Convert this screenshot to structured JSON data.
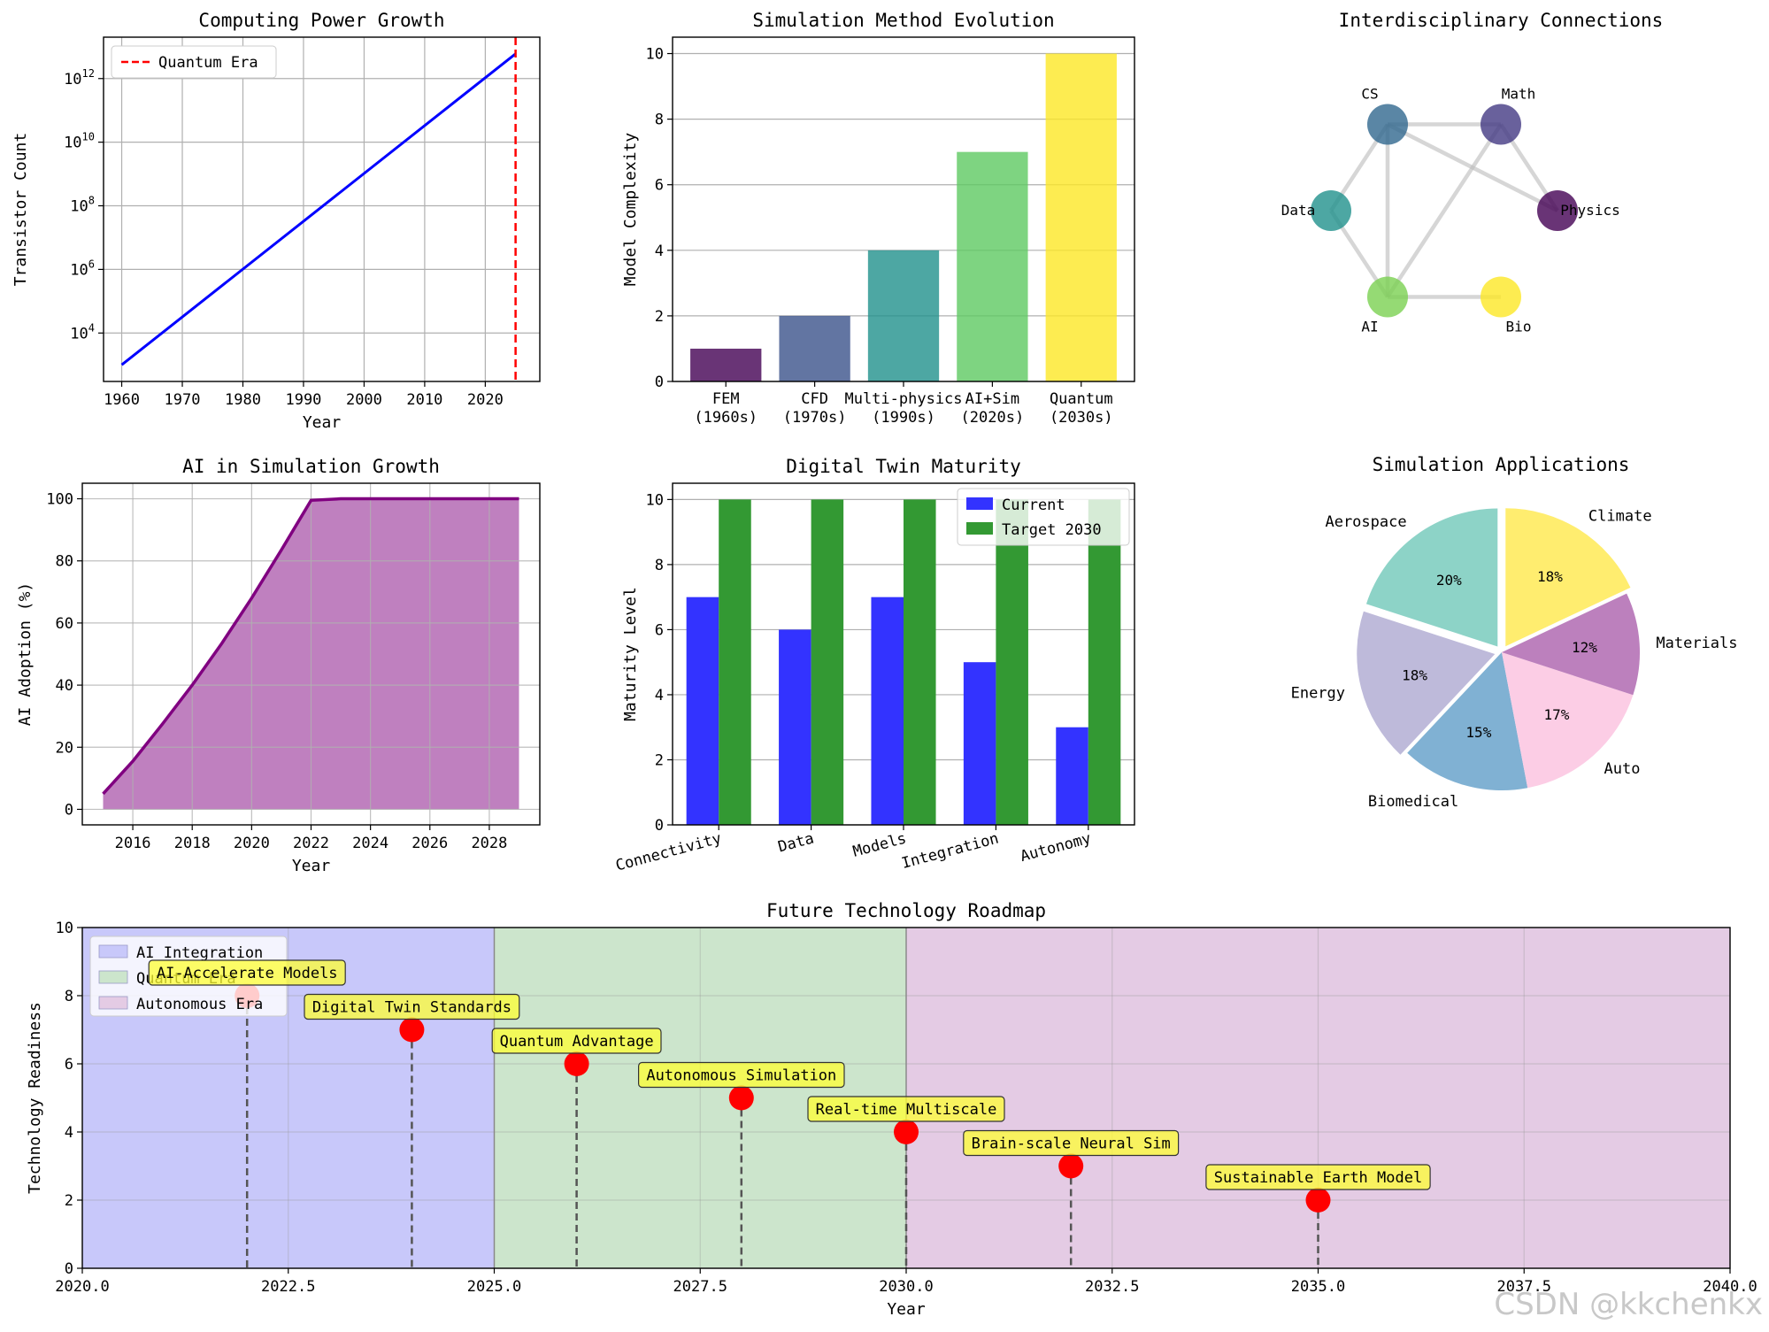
{
  "watermark": "CSDN @kkchenkx",
  "chart_data": [
    {
      "id": "computing",
      "type": "line",
      "title": "Computing Power Growth",
      "xlabel": "Year",
      "ylabel": "Transistor Count",
      "yscale": "log",
      "xlim": [
        1957,
        2029
      ],
      "ylim": [
        300.0,
        20000000000000.0
      ],
      "xticks": [
        "1960",
        "1970",
        "1980",
        "1990",
        "2000",
        "2010",
        "2020"
      ],
      "yticks": [
        {
          "base": "10",
          "exp": "4",
          "value": 10000
        },
        {
          "base": "10",
          "exp": "6",
          "value": 1000000
        },
        {
          "base": "10",
          "exp": "8",
          "value": 100000000
        },
        {
          "base": "10",
          "exp": "10",
          "value": 10000000000
        },
        {
          "base": "10",
          "exp": "12",
          "value": 1000000000000
        }
      ],
      "series": [
        {
          "x": [
            1960,
            2025
          ],
          "y": [
            1000,
            6000000000000.0
          ],
          "color": "#0000ff"
        }
      ],
      "vline": {
        "x": 2025,
        "label": "Quantum Era",
        "color": "#ff0000"
      },
      "legend": "upper-left",
      "grid": true
    },
    {
      "id": "methods",
      "type": "bar",
      "title": "Simulation Method Evolution",
      "ylabel": "Model Complexity",
      "ylim": [
        0,
        10.5
      ],
      "yticks": [
        "0",
        "2",
        "4",
        "6",
        "8",
        "10"
      ],
      "categories": [
        [
          "FEM",
          "(1960s)"
        ],
        [
          "CFD",
          "(1970s)"
        ],
        [
          "Multi-physics",
          "(1990s)"
        ],
        [
          "AI+Sim",
          "(2020s)"
        ],
        [
          "Quantum",
          "(2030s)"
        ]
      ],
      "values": [
        1,
        2,
        4,
        7,
        10
      ],
      "colors": [
        "#440154",
        "#3b528b",
        "#21918c",
        "#5ec962",
        "#fde725"
      ],
      "grid": "y"
    },
    {
      "id": "network",
      "type": "network",
      "title": "Interdisciplinary Connections",
      "nodes": [
        {
          "label": "CS",
          "x": -0.5,
          "y": 0.87,
          "color": "#31688e"
        },
        {
          "label": "Math",
          "x": 0.5,
          "y": 0.87,
          "color": "#443983"
        },
        {
          "label": "Physics",
          "x": 1.0,
          "y": 0.0,
          "color": "#440154"
        },
        {
          "label": "Data",
          "x": -1.0,
          "y": 0.0,
          "color": "#21918c"
        },
        {
          "label": "AI",
          "x": -0.5,
          "y": -0.87,
          "color": "#7ad151"
        },
        {
          "label": "Bio",
          "x": 0.5,
          "y": -0.87,
          "color": "#fde725"
        }
      ],
      "edges": [
        [
          0,
          1
        ],
        [
          1,
          2
        ],
        [
          0,
          3
        ],
        [
          3,
          4
        ],
        [
          0,
          4
        ],
        [
          1,
          4
        ],
        [
          4,
          5
        ],
        [
          0,
          2
        ]
      ]
    },
    {
      "id": "ai",
      "type": "area",
      "title": "AI in Simulation Growth",
      "xlabel": "Year",
      "ylabel": "AI Adoption (%)",
      "xlim": [
        2014.3,
        2029.7
      ],
      "ylim": [
        -5,
        105
      ],
      "xticks": [
        "2016",
        "2018",
        "2020",
        "2022",
        "2024",
        "2026",
        "2028"
      ],
      "yticks": [
        "0",
        "20",
        "40",
        "60",
        "80",
        "100"
      ],
      "x": [
        2015,
        2016,
        2017,
        2018,
        2019,
        2020,
        2021,
        2022,
        2023,
        2024,
        2025,
        2026,
        2027,
        2028,
        2029
      ],
      "y": [
        5,
        15.5,
        27.5,
        40,
        53.5,
        68,
        83.5,
        99.5,
        100,
        100,
        100,
        100,
        100,
        100,
        100
      ],
      "color": "#800080",
      "fill": "#bf80bf",
      "grid": true
    },
    {
      "id": "twin",
      "type": "bar",
      "title": "Digital Twin Maturity",
      "ylabel": "Maturity Level",
      "ylim": [
        0,
        10.5
      ],
      "yticks": [
        "0",
        "2",
        "4",
        "6",
        "8",
        "10"
      ],
      "categories": [
        "Connectivity",
        "Data",
        "Models",
        "Integration",
        "Autonomy"
      ],
      "series": [
        {
          "name": "Current",
          "values": [
            7,
            6,
            7,
            5,
            3
          ],
          "color": "#3333ff"
        },
        {
          "name": "Target 2030",
          "values": [
            10,
            10,
            10,
            10,
            10
          ],
          "color": "#339933"
        }
      ],
      "legend": "upper-right",
      "grid": "y"
    },
    {
      "id": "pie",
      "type": "pie",
      "title": "Simulation Applications",
      "slices": [
        {
          "label": "Aerospace",
          "value": 20,
          "pct": "20%",
          "color": "#8dd3c7",
          "explode": true
        },
        {
          "label": "Energy",
          "value": 18,
          "pct": "18%",
          "color": "#bebada",
          "explode": true
        },
        {
          "label": "Biomedical",
          "value": 15,
          "pct": "15%",
          "color": "#80b1d3",
          "explode": false
        },
        {
          "label": "Auto",
          "value": 17,
          "pct": "17%",
          "color": "#fccde5",
          "explode": false
        },
        {
          "label": "Materials",
          "value": 12,
          "pct": "12%",
          "color": "#bc80bd",
          "explode": false
        },
        {
          "label": "Climate",
          "value": 18,
          "pct": "18%",
          "color": "#ffed6f",
          "explode": true
        }
      ]
    },
    {
      "id": "roadmap",
      "type": "scatter",
      "title": "Future Technology Roadmap",
      "xlabel": "Year",
      "ylabel": "Technology Readiness",
      "xlim": [
        2020,
        2040
      ],
      "ylim": [
        0,
        10
      ],
      "xticks": [
        "2020.0",
        "2022.5",
        "2025.0",
        "2027.5",
        "2030.0",
        "2032.5",
        "2035.0",
        "2037.5",
        "2040.0"
      ],
      "yticks": [
        "0",
        "2",
        "4",
        "6",
        "8",
        "10"
      ],
      "spans": [
        {
          "name": "AI Integration",
          "from": 2020,
          "to": 2025,
          "color": "#c8c8fa"
        },
        {
          "name": "Quantum Era",
          "from": 2025,
          "to": 2030,
          "color": "#cce5cc"
        },
        {
          "name": "Autonomous Era",
          "from": 2030,
          "to": 2040,
          "color": "#e4cbe4"
        }
      ],
      "points": [
        {
          "x": 2022,
          "y": 8,
          "label": "AI-Accelerate Models"
        },
        {
          "x": 2024,
          "y": 7,
          "label": "Digital Twin Standards"
        },
        {
          "x": 2026,
          "y": 6,
          "label": "Quantum Advantage"
        },
        {
          "x": 2028,
          "y": 5,
          "label": "Autonomous Simulation"
        },
        {
          "x": 2030,
          "y": 4,
          "label": "Real-time Multiscale"
        },
        {
          "x": 2032,
          "y": 3,
          "label": "Brain-scale Neural Sim"
        },
        {
          "x": 2035,
          "y": 2,
          "label": "Sustainable Earth Model"
        }
      ],
      "legend": "upper-left",
      "grid": true
    }
  ]
}
